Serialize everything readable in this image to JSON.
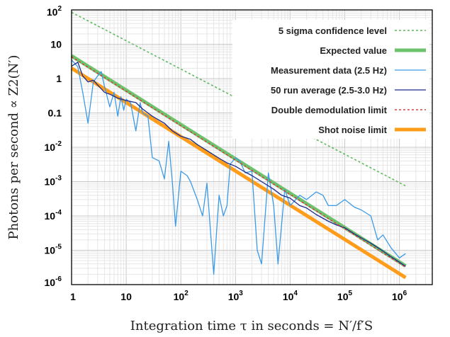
{
  "chart_data": {
    "type": "line",
    "xlabel": "Integration time τ in seconds = N′/f′S",
    "ylabel": "Photons per second ∝ Z2(N′)",
    "xscale": "log",
    "yscale": "log",
    "xlim": [
      1,
      4000000
    ],
    "ylim": [
      1e-06,
      100
    ],
    "grid": true,
    "legend_position": "top-right",
    "x_ticks": [
      "1",
      "10",
      "10^2",
      "10^3",
      "10^4",
      "10^5",
      "10^6"
    ],
    "y_ticks": [
      "10^-6",
      "10^-5",
      "10^-4",
      "10^-3",
      "10^-2",
      "0.1",
      "1",
      "10",
      "10^2"
    ],
    "series": [
      {
        "name": "5 sigma confidence level",
        "color": "#5cb85c",
        "style": "dotted",
        "x": [
          1,
          1300000
        ],
        "y": [
          85,
          0.00075
        ]
      },
      {
        "name": "Expected value",
        "color": "#6cc36c",
        "style": "thick",
        "x": [
          1,
          1300000
        ],
        "y": [
          4.6,
          3.5e-06
        ]
      },
      {
        "name": "Measurement data (2.5 Hz)",
        "color": "#3b9ae8",
        "style": "noisy",
        "x": [
          1,
          1.3,
          1.6,
          2,
          2.5,
          3,
          3.5,
          4,
          5,
          6,
          7,
          8,
          9,
          10,
          12,
          15,
          18,
          20,
          25,
          30,
          40,
          50,
          60,
          70,
          80,
          100,
          130,
          150,
          200,
          250,
          300,
          400,
          500,
          600,
          700,
          800,
          1000,
          1200,
          1500,
          2000,
          2500,
          3000,
          4000,
          5000,
          6000,
          8000,
          10000,
          15000,
          20000,
          30000,
          40000,
          50000,
          70000,
          100000,
          150000,
          200000,
          300000,
          400000,
          500000,
          700000,
          1000000,
          1300000
        ],
        "y": [
          3.5,
          2.2,
          0.4,
          0.05,
          0.8,
          1.2,
          1.6,
          0.6,
          0.15,
          0.4,
          0.08,
          0.3,
          0.12,
          0.25,
          0.2,
          0.03,
          0.2,
          0.1,
          0.08,
          0.005,
          0.004,
          0.0012,
          0.015,
          0.0009,
          5e-05,
          0.002,
          0.0015,
          0.001,
          0.0003,
          0.0001,
          0.0009,
          2e-06,
          0.0004,
          0.0001,
          0.0002,
          0.0032,
          0.005,
          0.004,
          0.0018,
          0.002,
          1e-05,
          4e-06,
          0.0018,
          0.0002,
          4e-06,
          0.0006,
          0.0002,
          0.0004,
          0.0003,
          0.0005,
          0.0004,
          0.0002,
          0.0002,
          0.0003,
          0.00018,
          0.00015,
          0.0001,
          2e-05,
          2.8e-05,
          1.2e-05,
          6e-06,
          8e-06
        ]
      },
      {
        "name": "50 run average (2.5-3.0 Hz)",
        "color": "#1c2a8c",
        "style": "solid",
        "x": [
          1,
          1.3,
          1.6,
          2,
          2.5,
          3,
          4,
          5,
          7,
          10,
          15,
          20,
          30,
          50,
          70,
          100,
          150,
          200,
          300,
          500,
          700,
          1000,
          1500,
          2000,
          3000,
          5000,
          7000,
          10000,
          15000,
          20000,
          30000,
          50000,
          70000,
          100000,
          150000,
          200000,
          300000,
          500000,
          700000,
          1000000,
          1300000
        ],
        "y": [
          2.3,
          3.0,
          1.2,
          0.8,
          0.9,
          0.65,
          0.4,
          0.35,
          0.27,
          0.23,
          0.2,
          0.13,
          0.08,
          0.05,
          0.03,
          0.021,
          0.017,
          0.012,
          0.008,
          0.0048,
          0.0035,
          0.0028,
          0.0019,
          0.0015,
          0.001,
          0.0006,
          0.0004,
          0.00033,
          0.0002,
          0.00017,
          0.00011,
          7e-05,
          5.5e-05,
          4.5e-05,
          3e-05,
          2.3e-05,
          1.6e-05,
          9.5e-06,
          6.5e-06,
          4.5e-06,
          3.4e-06
        ]
      },
      {
        "name": "Double demodulation limit",
        "color": "#d94040",
        "style": "dotted",
        "x": [
          1,
          1300000
        ],
        "y": [
          4.3,
          3.2e-06
        ]
      },
      {
        "name": "Shot noise limit",
        "color": "#ff9c1a",
        "style": "thick",
        "x": [
          1,
          1300000
        ],
        "y": [
          2.0,
          1.6e-06
        ]
      }
    ]
  }
}
